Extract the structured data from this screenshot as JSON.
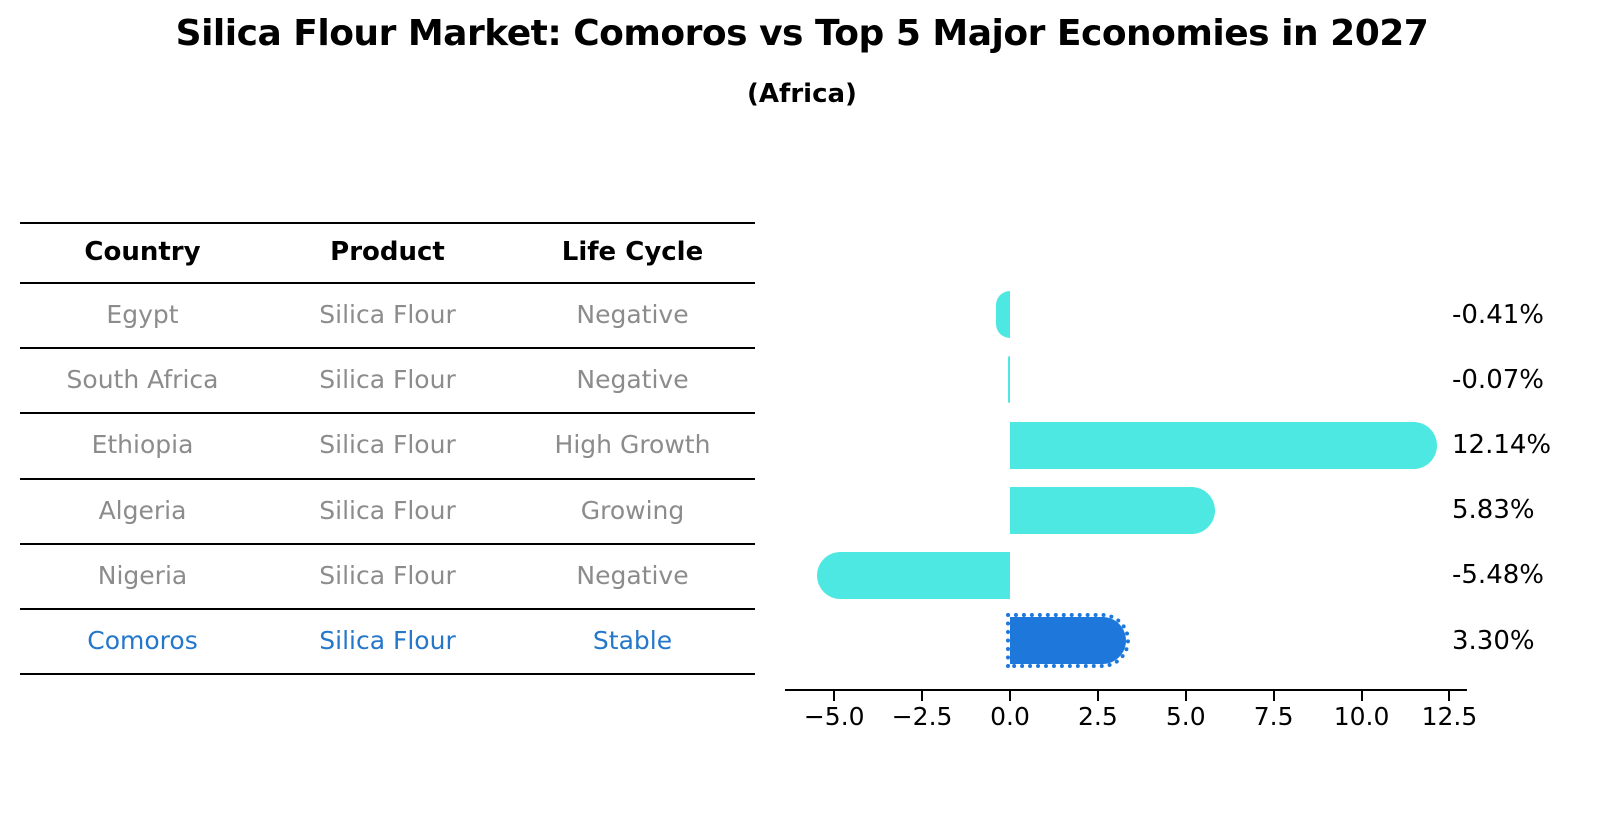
{
  "title": "Silica Flour Market: Comoros vs Top 5 Major Economies in 2027",
  "subtitle": "(Africa)",
  "table": {
    "headers": [
      "Country",
      "Product",
      "Life Cycle"
    ],
    "rows": [
      {
        "country": "Egypt",
        "product": "Silica Flour",
        "life_cycle": "Negative",
        "highlight": false
      },
      {
        "country": "South Africa",
        "product": "Silica Flour",
        "life_cycle": "Negative",
        "highlight": false
      },
      {
        "country": "Ethiopia",
        "product": "Silica Flour",
        "life_cycle": "High Growth",
        "highlight": false
      },
      {
        "country": "Algeria",
        "product": "Silica Flour",
        "life_cycle": "Growing",
        "highlight": false
      },
      {
        "country": "Nigeria",
        "product": "Silica Flour",
        "life_cycle": "Negative",
        "highlight": false
      },
      {
        "country": "Comoros",
        "product": "Silica Flour",
        "life_cycle": "Stable",
        "highlight": true
      }
    ]
  },
  "chart_data": {
    "type": "bar",
    "orientation": "horizontal",
    "title": "Silica Flour Market: Comoros vs Top 5 Major Economies in 2027",
    "subtitle": "(Africa)",
    "categories": [
      "Egypt",
      "South Africa",
      "Ethiopia",
      "Algeria",
      "Nigeria",
      "Comoros"
    ],
    "values": [
      -0.41,
      -0.07,
      12.14,
      5.83,
      -5.48,
      3.3
    ],
    "value_labels": [
      "-0.41%",
      "-0.07%",
      "12.14%",
      "5.83%",
      "-5.48%",
      "3.30%"
    ],
    "xlim": [
      -6.4,
      13.0
    ],
    "xticks": [
      -5.0,
      -2.5,
      0.0,
      2.5,
      5.0,
      7.5,
      10.0,
      12.5
    ],
    "xtick_labels": [
      "−5.0",
      "−2.5",
      "0.0",
      "2.5",
      "5.0",
      "7.5",
      "10.0",
      "12.5"
    ],
    "legend": "none",
    "grid": false,
    "bar_color": "#4DE8E1",
    "highlight_color": "#1E78DC",
    "highlight_index": 5
  },
  "colors": {
    "bar_cyan": "#4DE8E1",
    "bar_blue": "#1E78DC",
    "row_text_gray": "#8c8c8c",
    "highlight_text_blue": "#2477C9",
    "text_black": "#000000",
    "background": "#ffffff"
  }
}
